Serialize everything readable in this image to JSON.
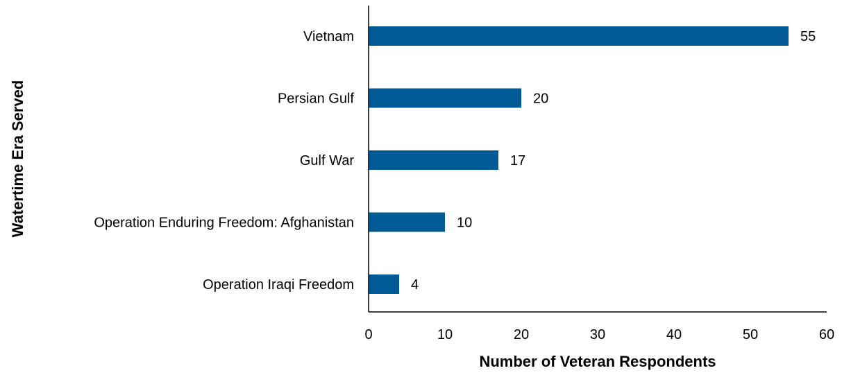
{
  "chart_data": {
    "type": "bar",
    "orientation": "horizontal",
    "categories": [
      "Vietnam",
      "Persian Gulf",
      "Gulf War",
      "Operation Enduring Freedom: Afghanistan",
      "Operation Iraqi Freedom"
    ],
    "values": [
      55,
      20,
      17,
      10,
      4
    ],
    "xlabel": "Number of Veteran Respondents",
    "ylabel": "Watertime Era Served",
    "xlim": [
      0,
      60
    ],
    "xticks": [
      0,
      10,
      20,
      30,
      40,
      50,
      60
    ],
    "grid": false,
    "data_labels": true,
    "bar_color": "#005A96"
  }
}
